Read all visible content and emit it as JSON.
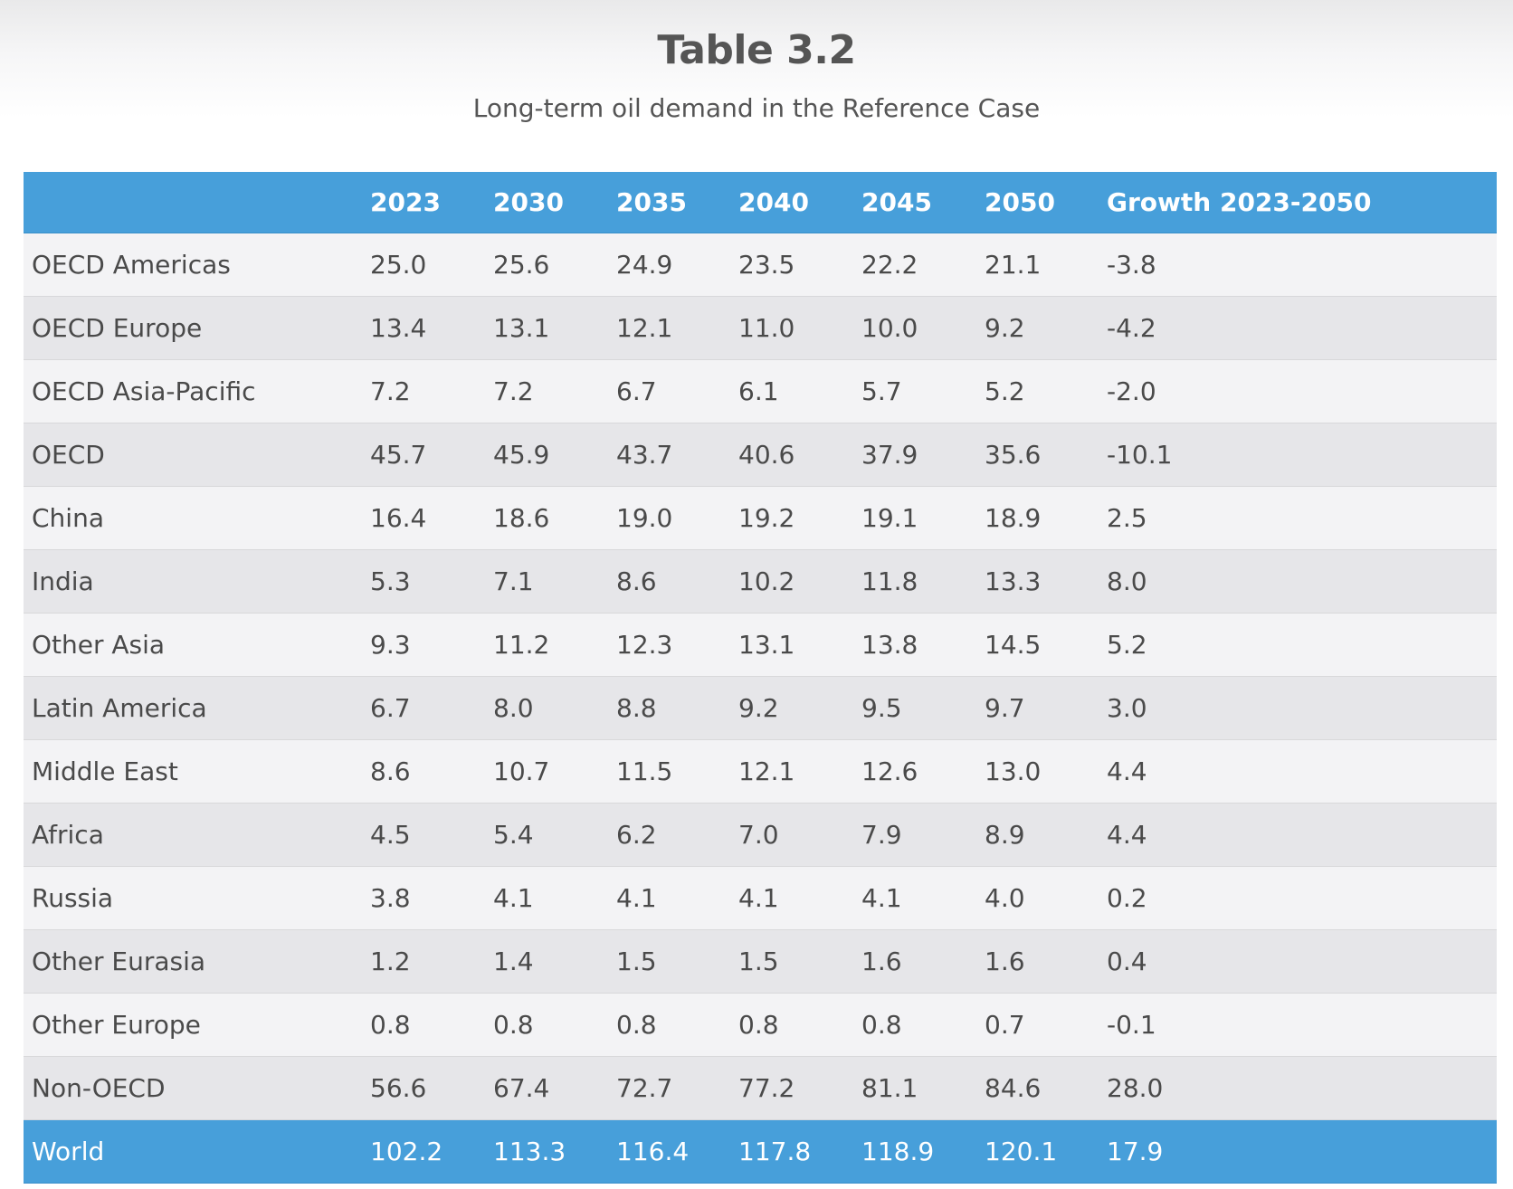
{
  "title": "Table 3.2",
  "subtitle": "Long-term oil demand in the Reference Case",
  "columns": [
    "",
    "2023",
    "2030",
    "2035",
    "2040",
    "2045",
    "2050",
    "Growth 2023-2050"
  ],
  "rows": [
    [
      "OECD Americas",
      "25.0",
      "25.6",
      "24.9",
      "23.5",
      "22.2",
      "21.1",
      "-3.8"
    ],
    [
      "OECD Europe",
      "13.4",
      "13.1",
      "12.1",
      "11.0",
      "10.0",
      "9.2",
      "-4.2"
    ],
    [
      "OECD Asia-Pacific",
      "7.2",
      "7.2",
      "6.7",
      "6.1",
      "5.7",
      "5.2",
      "-2.0"
    ],
    [
      "OECD",
      "45.7",
      "45.9",
      "43.7",
      "40.6",
      "37.9",
      "35.6",
      "-10.1"
    ],
    [
      "China",
      "16.4",
      "18.6",
      "19.0",
      "19.2",
      "19.1",
      "18.9",
      "2.5"
    ],
    [
      "India",
      "5.3",
      "7.1",
      "8.6",
      "10.2",
      "11.8",
      "13.3",
      "8.0"
    ],
    [
      "Other Asia",
      "9.3",
      "11.2",
      "12.3",
      "13.1",
      "13.8",
      "14.5",
      "5.2"
    ],
    [
      "Latin America",
      "6.7",
      "8.0",
      "8.8",
      "9.2",
      "9.5",
      "9.7",
      "3.0"
    ],
    [
      "Middle East",
      "8.6",
      "10.7",
      "11.5",
      "12.1",
      "12.6",
      "13.0",
      "4.4"
    ],
    [
      "Africa",
      "4.5",
      "5.4",
      "6.2",
      "7.0",
      "7.9",
      "8.9",
      "4.4"
    ],
    [
      "Russia",
      "3.8",
      "4.1",
      "4.1",
      "4.1",
      "4.1",
      "4.0",
      "0.2"
    ],
    [
      "Other Eurasia",
      "1.2",
      "1.4",
      "1.5",
      "1.5",
      "1.6",
      "1.6",
      "0.4"
    ],
    [
      "Other Europe",
      "0.8",
      "0.8",
      "0.8",
      "0.8",
      "0.8",
      "0.7",
      "-0.1"
    ],
    [
      "Non-OECD",
      "56.6",
      "67.4",
      "72.7",
      "77.2",
      "81.1",
      "84.6",
      "28.0"
    ]
  ],
  "total": [
    "World",
    "102.2",
    "113.3",
    "116.4",
    "117.8",
    "118.9",
    "120.1",
    "17.9"
  ],
  "colors": {
    "header_bg": "#479fda",
    "row_light": "#f3f3f5",
    "row_dark": "#e6e6e9",
    "text": "#4a4a4a"
  }
}
